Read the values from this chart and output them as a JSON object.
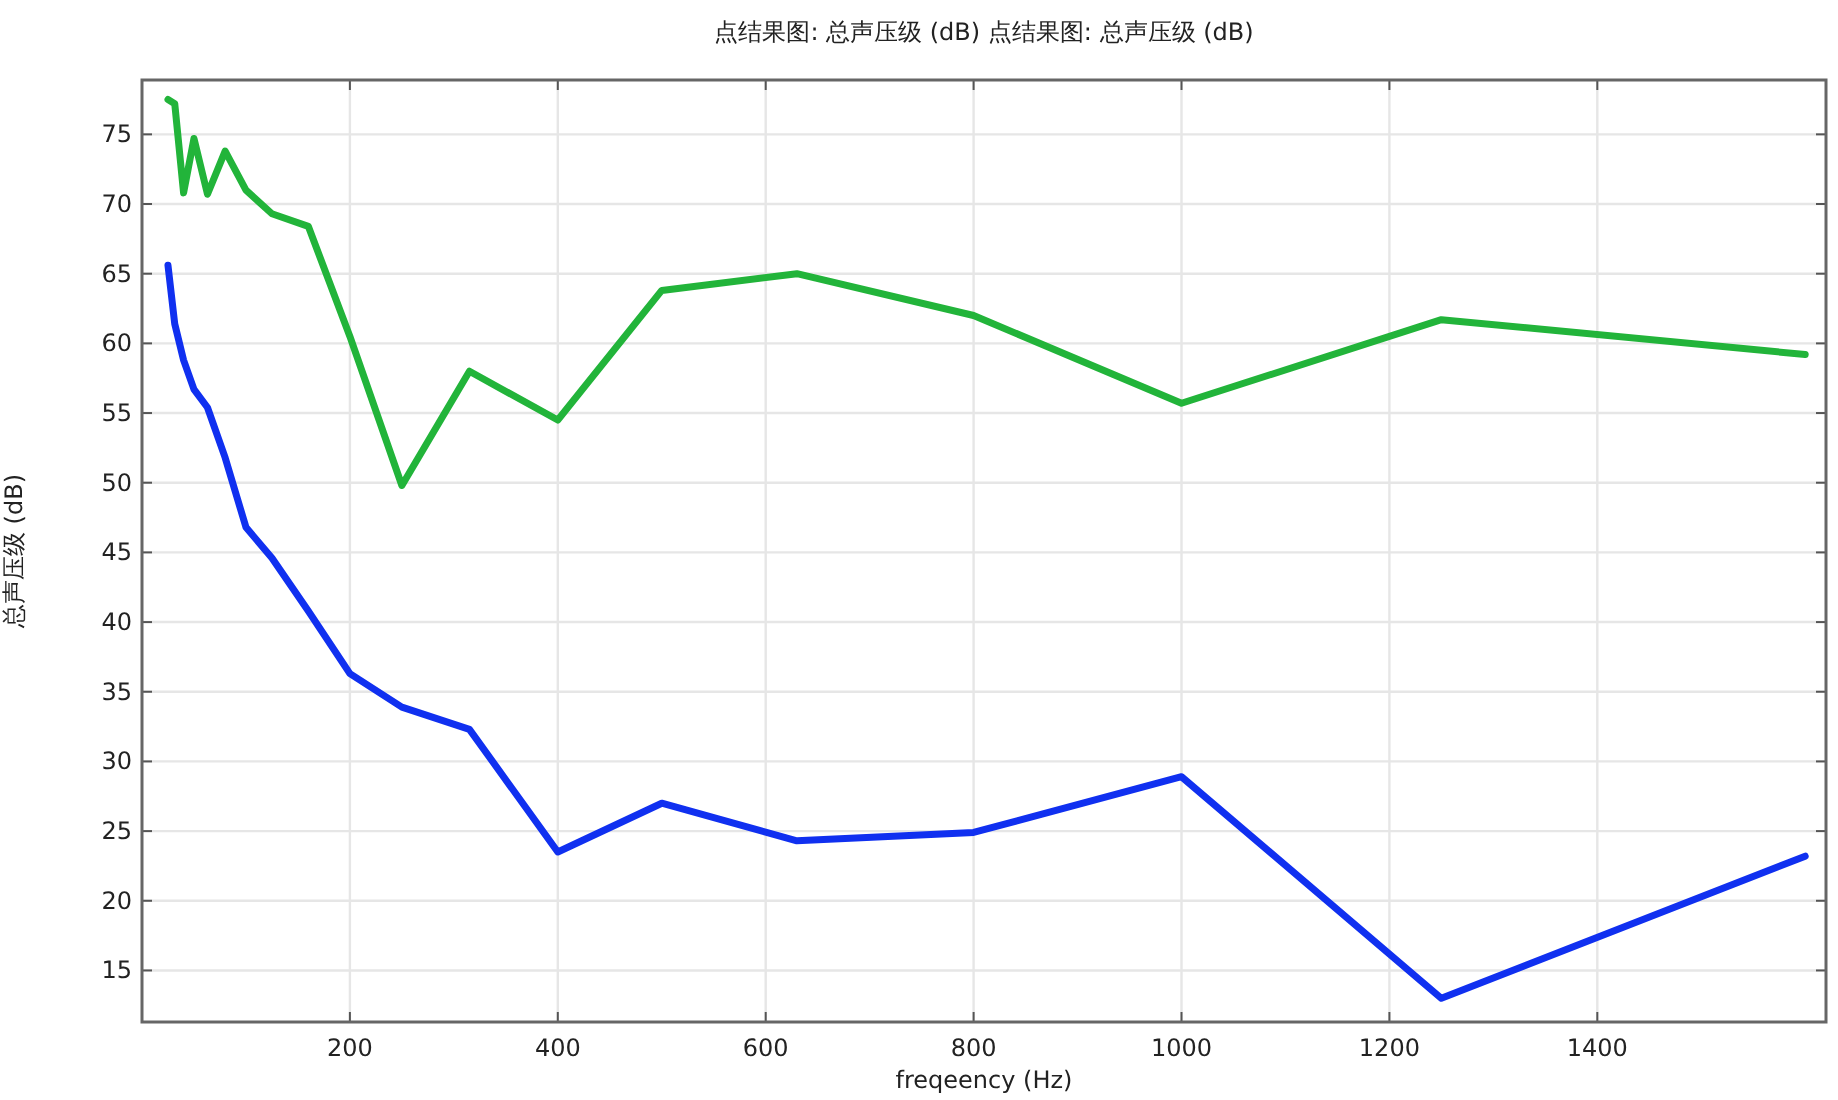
{
  "chart_data": {
    "type": "line",
    "title": "点结果图: 总声压级 (dB)  点结果图: 总声压级 (dB)",
    "xlabel": "freqeency (Hz)",
    "ylabel": "总声压级 (dB)",
    "x": [
      25,
      31.5,
      40,
      50,
      63,
      80,
      100,
      125,
      160,
      200,
      250,
      315,
      400,
      500,
      630,
      800,
      1000,
      1250,
      1600
    ],
    "series": [
      {
        "color": "#22b43a",
        "values": [
          77.5,
          77.2,
          70.8,
          74.7,
          70.7,
          73.8,
          71,
          69.3,
          68.4,
          60.5,
          49.8,
          58,
          54.5,
          63.8,
          65,
          62,
          55.7,
          61.7,
          59.2
        ]
      },
      {
        "color": "#1030f0",
        "values": [
          65.6,
          61.4,
          58.8,
          56.7,
          55.4,
          51.8,
          46.8,
          44.6,
          40.8,
          36.3,
          33.9,
          32.3,
          23.5,
          27,
          24.3,
          24.9,
          28.9,
          13,
          23.2
        ]
      }
    ],
    "xlim": [
      0,
      1620
    ],
    "ylim": [
      11.3,
      78.9
    ],
    "xticks": [
      200,
      400,
      600,
      800,
      1000,
      1200,
      1400
    ],
    "yticks": [
      15,
      20,
      25,
      30,
      35,
      40,
      45,
      50,
      55,
      60,
      65,
      70,
      75
    ],
    "grid": true,
    "line_style": "solid"
  }
}
